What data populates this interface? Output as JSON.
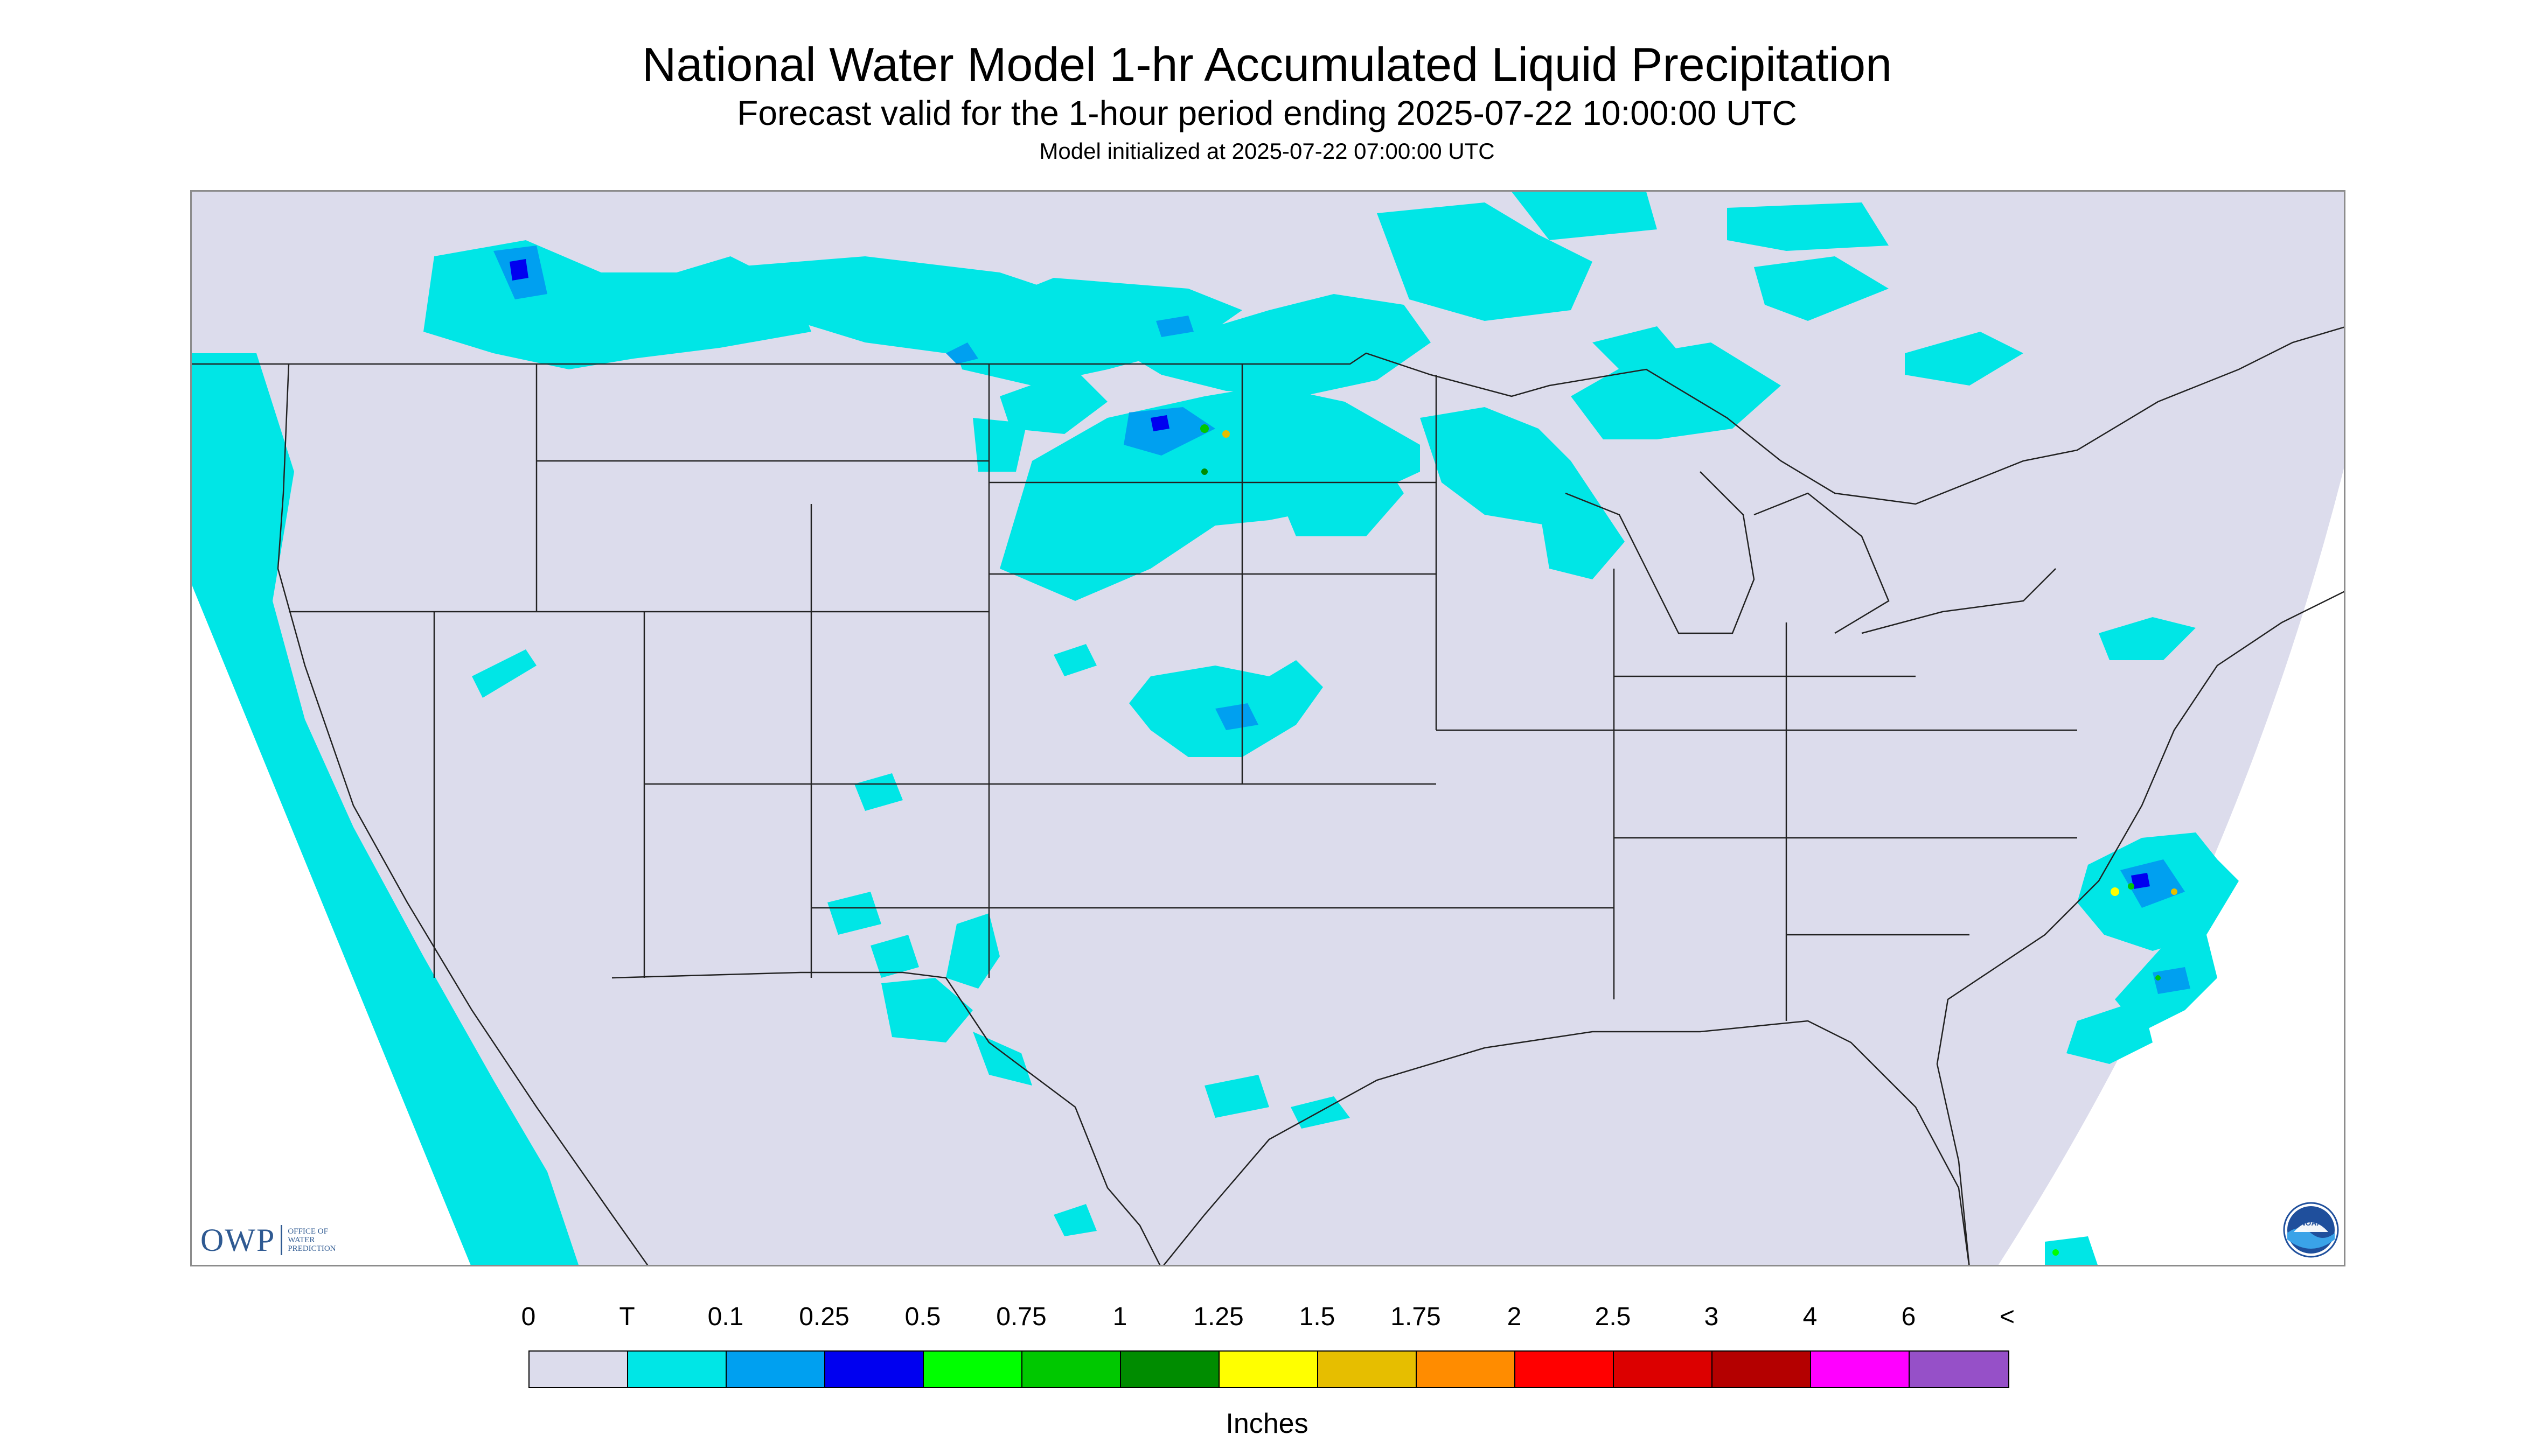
{
  "title": "National Water Model 1-hr Accumulated Liquid Precipitation",
  "subtitle": "Forecast valid for the 1-hour period ending 2025-07-22 10:00:00 UTC",
  "init_line": "Model initialized at 2025-07-22 07:00:00 UTC",
  "owp_logo": {
    "letters": "OWP",
    "sub_lines": [
      "Office of",
      "Water",
      "Prediction"
    ]
  },
  "noaa_logo": {
    "text": "NOAA",
    "icon": "noaa-seal-icon"
  },
  "legend": {
    "tick_labels": [
      "0",
      "T",
      "0.1",
      "0.25",
      "0.5",
      "0.75",
      "1",
      "1.25",
      "1.5",
      "1.75",
      "2",
      "2.5",
      "3",
      "4",
      "6",
      "<"
    ],
    "colors": [
      "#dcdcec",
      "#00e6e6",
      "#00a0f0",
      "#0000f0",
      "#00ff00",
      "#00c800",
      "#008c00",
      "#ffff00",
      "#e6be00",
      "#ff8c00",
      "#ff0000",
      "#dc0000",
      "#b40000",
      "#ff00ff",
      "#9650c8"
    ],
    "units": "Inches"
  },
  "map": {
    "background_color": "#dcdcec",
    "outside_domain_color": "#ffffff",
    "boundary_color": "#222222"
  }
}
